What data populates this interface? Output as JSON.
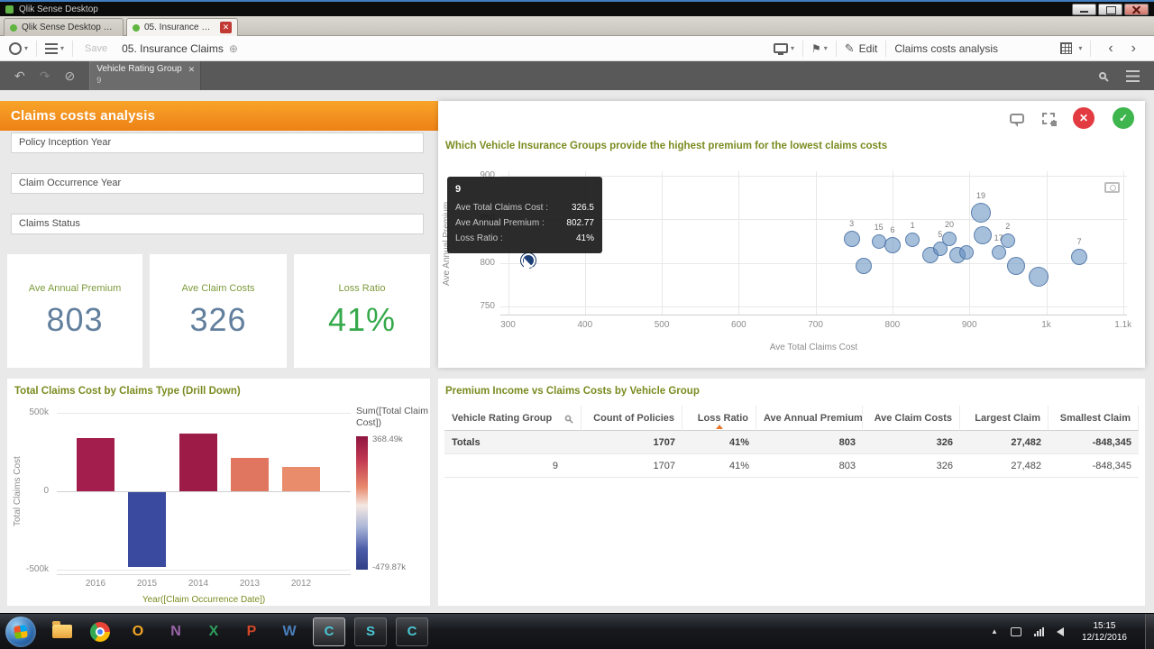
{
  "window": {
    "title": "Qlik Sense Desktop"
  },
  "browser_tabs": {
    "hub_tab": "Qlik Sense Desktop hub",
    "app_tab": "05. Insurance Claims"
  },
  "toolbar": {
    "save": "Save",
    "app_title": "05. Insurance Claims",
    "edit": "Edit",
    "sheet_name": "Claims costs analysis"
  },
  "selections_bar": {
    "chip_title": "Vehicle Rating Group",
    "chip_value": "9"
  },
  "sheet": {
    "title": "Claims costs analysis",
    "filters": [
      {
        "label": "Policy Inception Year"
      },
      {
        "label": "Claim Occurrence Year"
      },
      {
        "label": "Claims Status"
      }
    ],
    "kpis": [
      {
        "label": "Ave Annual Premium",
        "value": "803"
      },
      {
        "label": "Ave Claim Costs",
        "value": "326"
      },
      {
        "label": "Loss Ratio",
        "value": "41%"
      }
    ]
  },
  "icons": {
    "step_back": "↶",
    "step_forward": "↷",
    "clear_selections": "⊘",
    "close": "✕",
    "caret": "▾",
    "bookmark": "⚑",
    "pencil": "✎",
    "globe": "⊕",
    "chevron_left": "‹",
    "chevron_right": "›",
    "check": "✓",
    "tray_expand": "▲"
  },
  "colors": {
    "header_orange": "#f49d20",
    "kpi_value_blue": "#627f9d",
    "kpi_green": "#35a94b",
    "title_olive": "#7c8b20",
    "bubble_blue": "#5c8abe",
    "selected_navy": "#1b3f77",
    "cancel_red": "#e23b41",
    "confirm_green": "#3eb54d"
  },
  "chart_data": [
    {
      "id": "premium_vs_claims_scatter",
      "type": "scatter",
      "title": "Which Vehicle Insurance Groups provide the highest premium for the lowest claims costs",
      "xlabel": "Ave Total Claims Cost",
      "ylabel": "Ave Annual Premium",
      "xlim": [
        290,
        1105
      ],
      "ylim": [
        740,
        905
      ],
      "x_ticks": [
        "300",
        "400",
        "500",
        "600",
        "700",
        "800",
        "900",
        "1k",
        "1.1k"
      ],
      "x_tick_values": [
        300,
        400,
        500,
        600,
        700,
        800,
        900,
        1000,
        1100
      ],
      "y_ticks": [
        "900",
        "850",
        "800",
        "750"
      ],
      "y_tick_values": [
        900,
        850,
        800,
        750
      ],
      "points": [
        {
          "label": "9",
          "x": 326.5,
          "y": 802.77,
          "r": 8,
          "selected": true
        },
        {
          "label": "3",
          "x": 747,
          "y": 828,
          "r": 9
        },
        {
          "label": "",
          "x": 762,
          "y": 797,
          "r": 9
        },
        {
          "label": "15",
          "x": 782,
          "y": 825,
          "r": 8
        },
        {
          "label": "6",
          "x": 800,
          "y": 820,
          "r": 9
        },
        {
          "label": "1",
          "x": 826,
          "y": 827,
          "r": 8
        },
        {
          "label": "",
          "x": 849,
          "y": 809,
          "r": 9
        },
        {
          "label": "5",
          "x": 862,
          "y": 816,
          "r": 8
        },
        {
          "label": "20",
          "x": 874,
          "y": 828,
          "r": 8
        },
        {
          "label": "",
          "x": 884,
          "y": 809,
          "r": 9
        },
        {
          "label": "",
          "x": 896,
          "y": 812,
          "r": 8
        },
        {
          "label": "19",
          "x": 915,
          "y": 858,
          "r": 11
        },
        {
          "label": "",
          "x": 917,
          "y": 832,
          "r": 10
        },
        {
          "label": "17",
          "x": 938,
          "y": 812,
          "r": 8
        },
        {
          "label": "2",
          "x": 950,
          "y": 826,
          "r": 8
        },
        {
          "label": "",
          "x": 961,
          "y": 797,
          "r": 10
        },
        {
          "label": "",
          "x": 990,
          "y": 784,
          "r": 11
        },
        {
          "label": "7",
          "x": 1043,
          "y": 807,
          "r": 9
        }
      ],
      "tooltip": {
        "title": "9",
        "rows": [
          {
            "label": "Ave Total Claims Cost :",
            "value": "326.5"
          },
          {
            "label": "Ave Annual Premium :",
            "value": "802.77"
          },
          {
            "label": "Loss Ratio :",
            "value": "41%"
          }
        ]
      }
    },
    {
      "id": "claims_by_year_bar",
      "type": "bar",
      "title": "Total Claims Cost by Claims Type (Drill Down)",
      "xlabel": "Year([Claim Occurrence Date])",
      "ylabel": "Total Claims Cost",
      "categories": [
        "2016",
        "2015",
        "2014",
        "2013",
        "2012"
      ],
      "values": [
        340000,
        -479870,
        368490,
        210000,
        155000
      ],
      "colors": [
        "#a41e4d",
        "#3a4a9f",
        "#9c1b47",
        "#e0765f",
        "#e88c6b"
      ],
      "ylim": [
        -500000,
        500000
      ],
      "y_ticks": [
        "500k",
        "0",
        "-500k"
      ],
      "y_tick_values": [
        500000,
        0,
        -500000
      ],
      "legend": {
        "title": "Sum([Total Claim Cost])",
        "max_label": "368.49k",
        "min_label": "-479.87k"
      }
    },
    {
      "id": "vehicle_group_table",
      "type": "table",
      "title": "Premium Income vs Claims Costs by Vehicle Group",
      "columns": [
        "Vehicle Rating Group",
        "Count of Policies",
        "Loss Ratio",
        "Ave Annual Premium",
        "Ave Claim Costs",
        "Largest Claim",
        "Smallest Claim"
      ],
      "totals": [
        "Totals",
        "1707",
        "41%",
        "803",
        "326",
        "27,482",
        "-848,345"
      ],
      "rows": [
        [
          "9",
          "1707",
          "41%",
          "803",
          "326",
          "27,482",
          "-848,345"
        ]
      ]
    }
  ],
  "taskbar": {
    "office_icons": [
      {
        "name": "outlook",
        "letter": "O",
        "color": "#f5a623"
      },
      {
        "name": "onenote",
        "letter": "N",
        "color": "#9a64a8"
      },
      {
        "name": "excel",
        "letter": "X",
        "color": "#2e9e5b"
      },
      {
        "name": "powerpoint",
        "letter": "P",
        "color": "#d04726"
      },
      {
        "name": "word",
        "letter": "W",
        "color": "#4a7ebb"
      }
    ],
    "tiles": [
      {
        "letter": "C",
        "active": true
      },
      {
        "letter": "S",
        "active": false
      },
      {
        "letter": "C",
        "active": false
      }
    ],
    "clock": {
      "time": "15:15",
      "date": "12/12/2016"
    }
  }
}
